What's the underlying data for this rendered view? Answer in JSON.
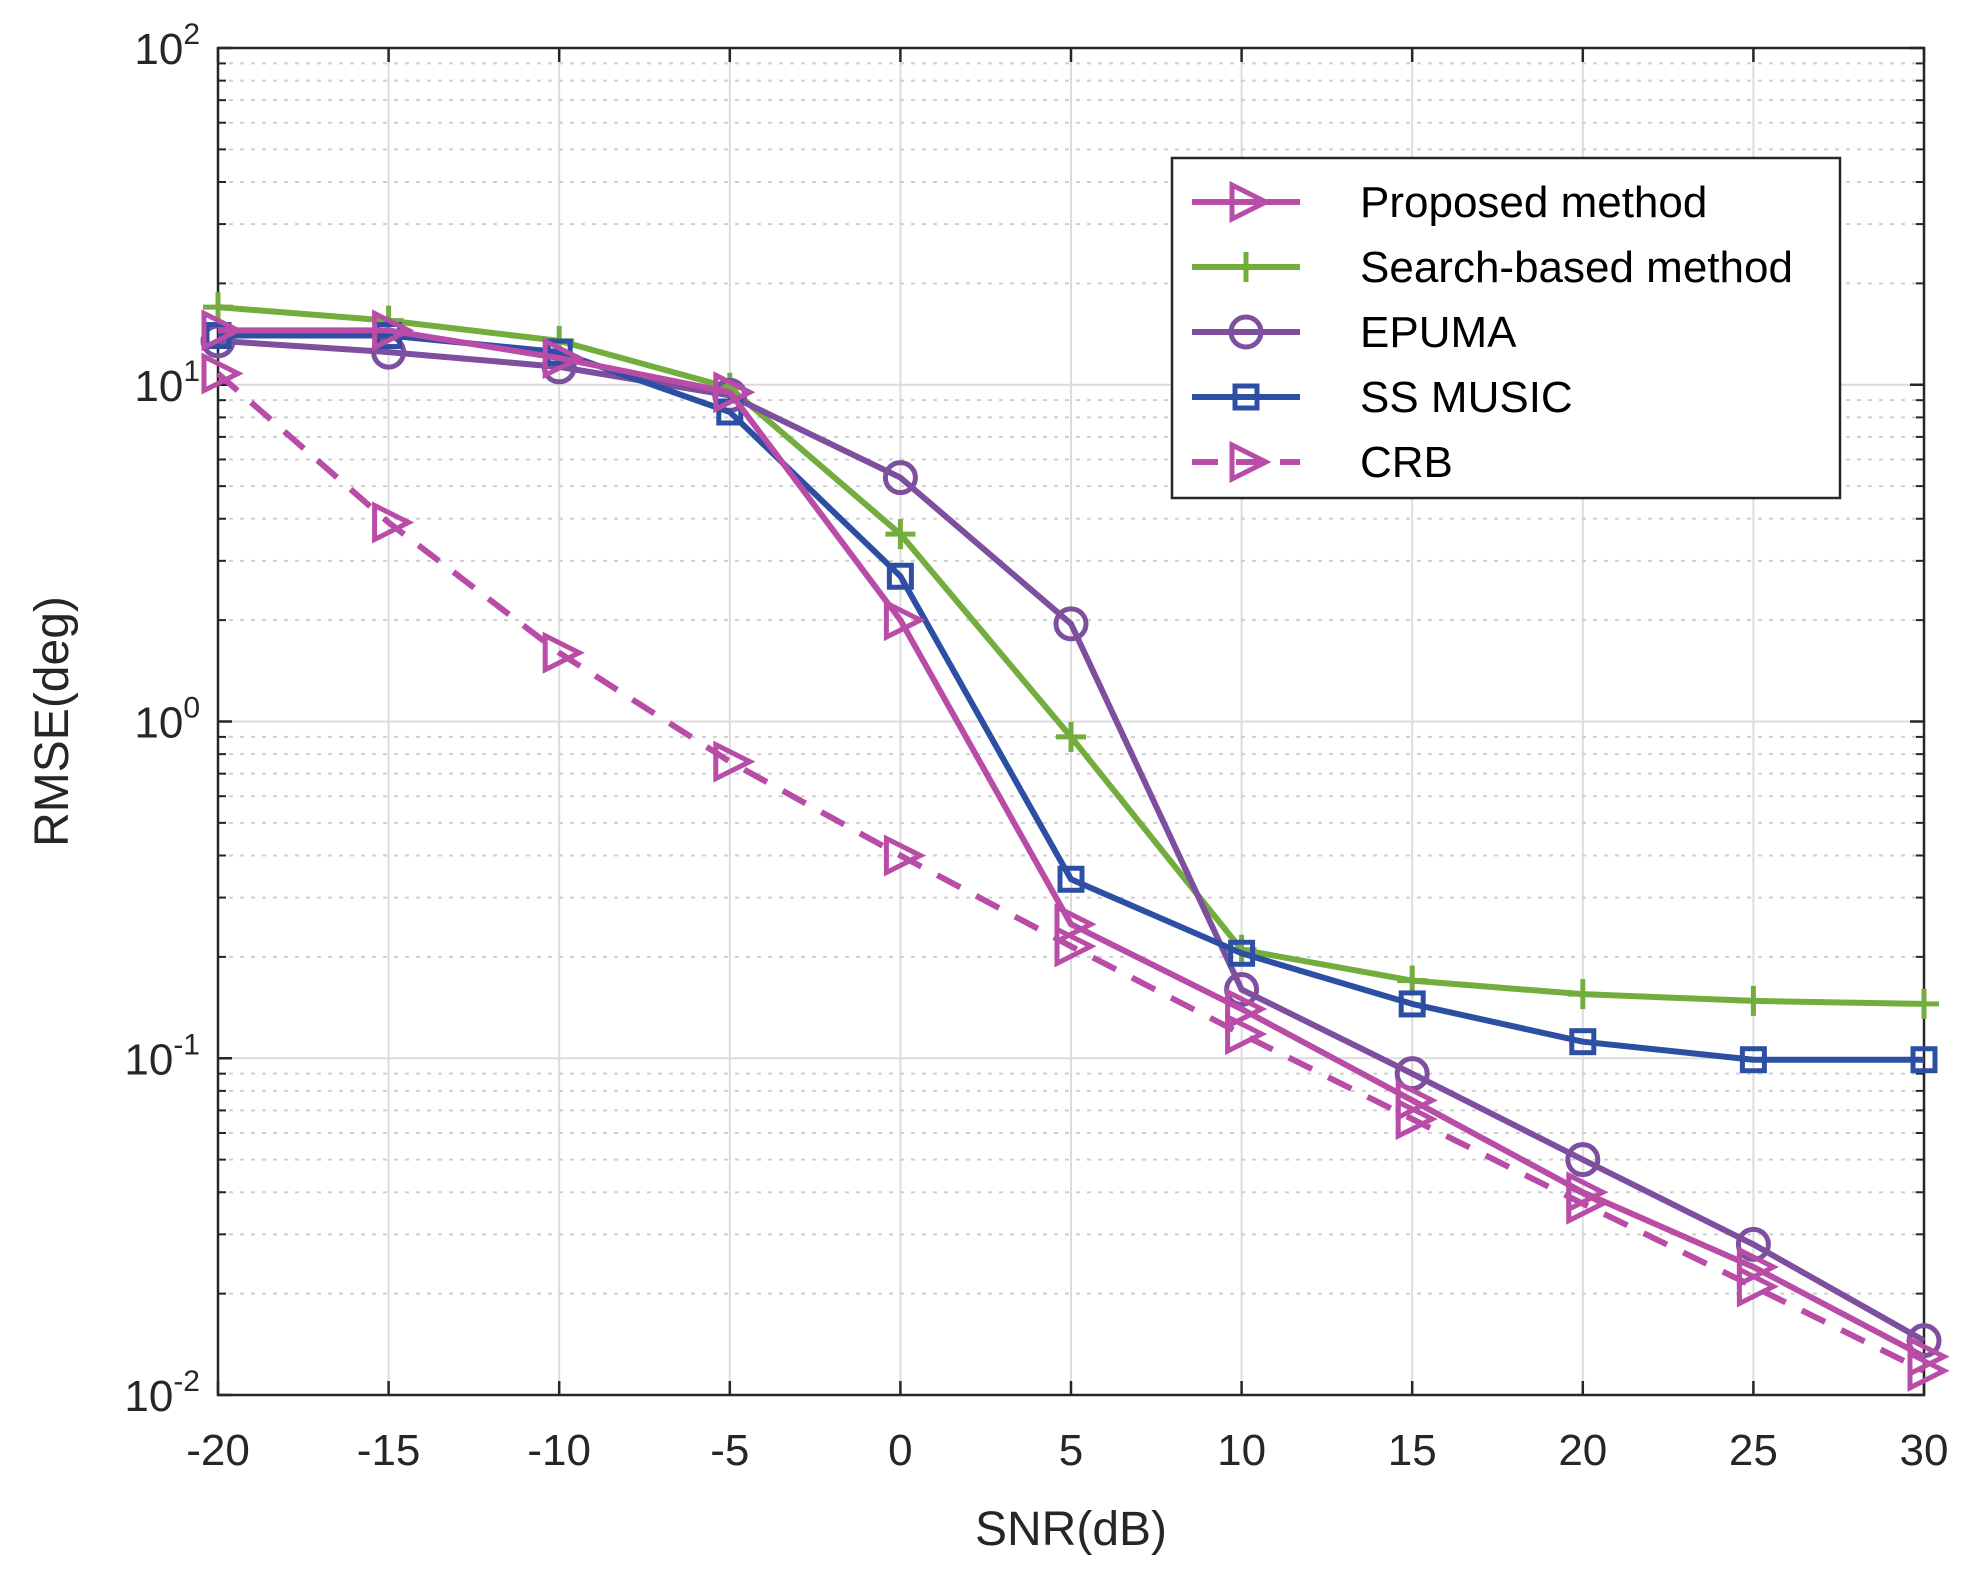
{
  "chart_data": {
    "type": "line",
    "xlabel": "SNR(dB)",
    "ylabel": "RMSE(deg)",
    "xlim": [
      -20,
      30
    ],
    "ylim": [
      0.01,
      100
    ],
    "yscale": "log",
    "grid": true,
    "legend_position": "top-right",
    "x": [
      -20,
      -15,
      -10,
      -5,
      0,
      5,
      10,
      15,
      20,
      25,
      30
    ],
    "x_ticks": [
      "-20",
      "-15",
      "-10",
      "-5",
      "0",
      "5",
      "10",
      "15",
      "20",
      "25",
      "30"
    ],
    "y_ticks": [
      {
        "base": "10",
        "exp": "-2",
        "value": 0.01
      },
      {
        "base": "10",
        "exp": "-1",
        "value": 0.1
      },
      {
        "base": "10",
        "exp": "0",
        "value": 1
      },
      {
        "base": "10",
        "exp": "1",
        "value": 10
      },
      {
        "base": "10",
        "exp": "2",
        "value": 100
      }
    ],
    "series": [
      {
        "name": "Proposed method",
        "color": "#b84ca6",
        "marker": "triangle-right",
        "dash": false,
        "values": [
          14.5,
          14.5,
          12.0,
          9.5,
          2.0,
          0.25,
          0.14,
          0.075,
          0.04,
          0.024,
          0.013
        ]
      },
      {
        "name": "Search-based method",
        "color": "#72ad3e",
        "marker": "plus",
        "dash": false,
        "values": [
          17.0,
          15.5,
          13.5,
          9.8,
          3.6,
          0.9,
          0.21,
          0.17,
          0.155,
          0.148,
          0.145
        ]
      },
      {
        "name": "EPUMA",
        "color": "#7d4f9e",
        "marker": "circle",
        "dash": false,
        "values": [
          13.5,
          12.5,
          11.3,
          9.3,
          5.3,
          1.95,
          0.16,
          0.09,
          0.05,
          0.028,
          0.0145
        ]
      },
      {
        "name": "SS MUSIC",
        "color": "#2d4fa3",
        "marker": "square",
        "dash": false,
        "values": [
          14.0,
          14.0,
          12.5,
          8.3,
          2.7,
          0.34,
          0.205,
          0.145,
          0.112,
          0.099,
          0.099
        ]
      },
      {
        "name": "CRB",
        "color": "#b84ca6",
        "marker": "triangle-right",
        "dash": true,
        "values": [
          10.8,
          3.9,
          1.6,
          0.76,
          0.4,
          0.215,
          0.118,
          0.066,
          0.037,
          0.021,
          0.0118
        ]
      }
    ]
  }
}
